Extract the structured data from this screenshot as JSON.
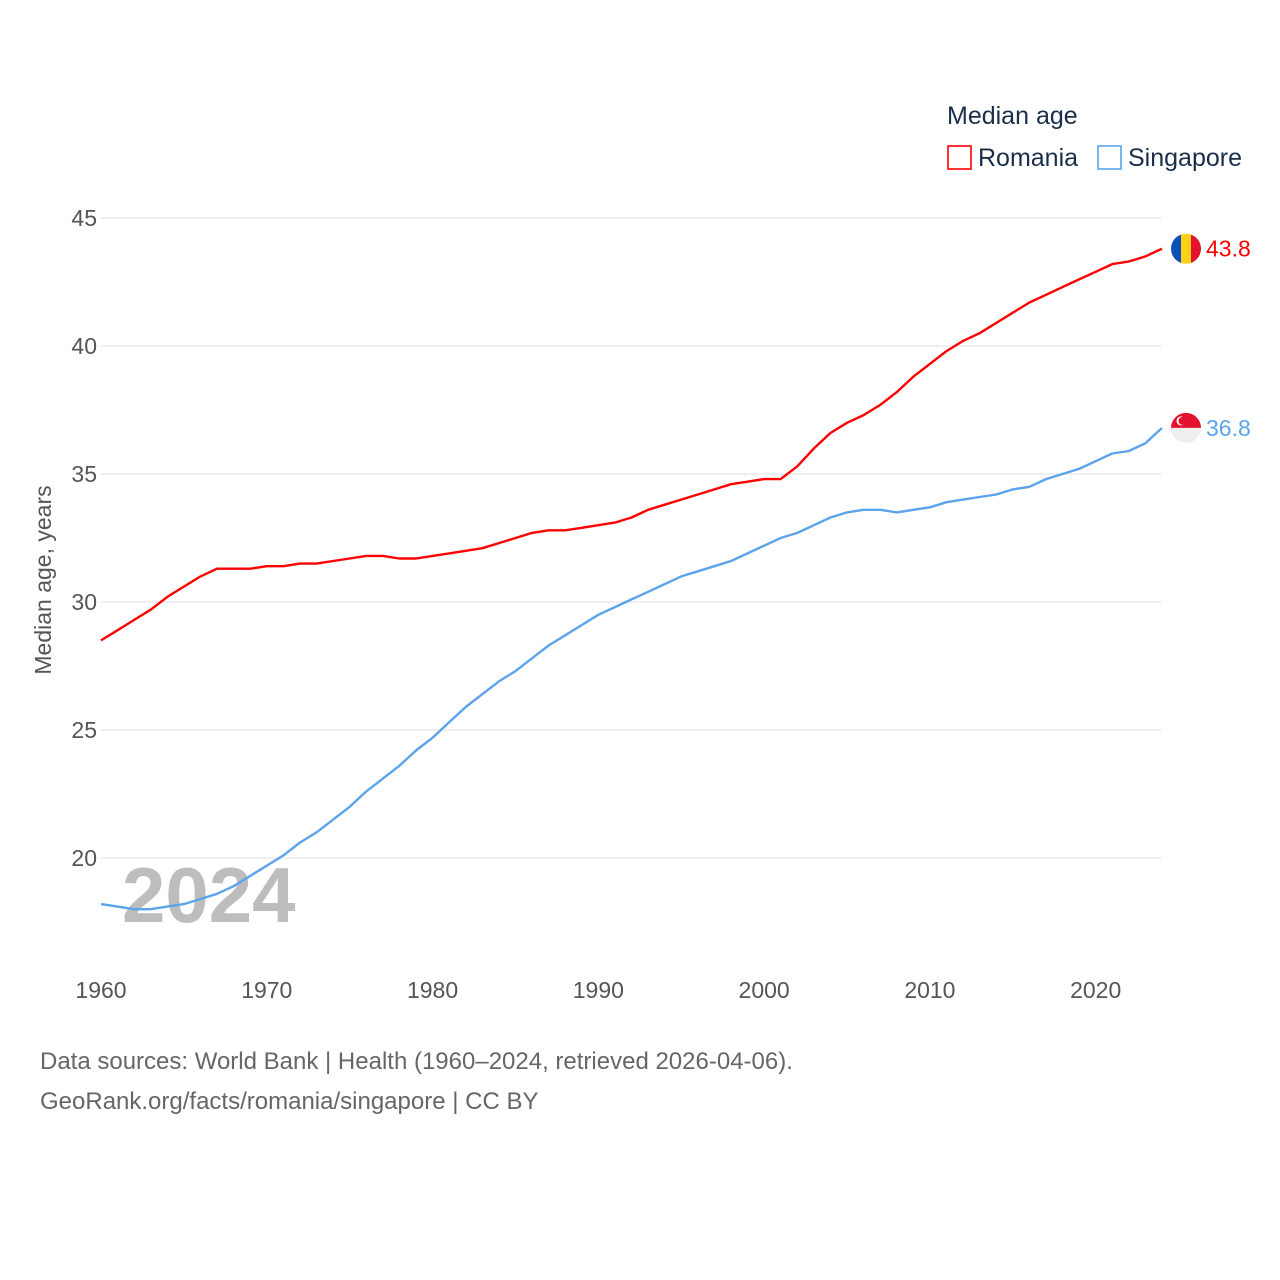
{
  "chart_data": {
    "type": "line",
    "title": "Median age",
    "ylabel": "Median age, years",
    "xlabel": "",
    "ylim": [
      16,
      45
    ],
    "xlim": [
      1960,
      2024
    ],
    "yticks": [
      20,
      25,
      30,
      35,
      40,
      45
    ],
    "xticks": [
      1960,
      1970,
      1980,
      1990,
      2000,
      2010,
      2020
    ],
    "grid": true,
    "legend_position": "top-right",
    "year_label": "2024",
    "x": [
      1960,
      1961,
      1962,
      1963,
      1964,
      1965,
      1966,
      1967,
      1968,
      1969,
      1970,
      1971,
      1972,
      1973,
      1974,
      1975,
      1976,
      1977,
      1978,
      1979,
      1980,
      1981,
      1982,
      1983,
      1984,
      1985,
      1986,
      1987,
      1988,
      1989,
      1990,
      1991,
      1992,
      1993,
      1994,
      1995,
      1996,
      1997,
      1998,
      1999,
      2000,
      2001,
      2002,
      2003,
      2004,
      2005,
      2006,
      2007,
      2008,
      2009,
      2010,
      2011,
      2012,
      2013,
      2014,
      2015,
      2016,
      2017,
      2018,
      2019,
      2020,
      2021,
      2022,
      2023,
      2024
    ],
    "series": [
      {
        "name": "Romania",
        "color": "#ff0000",
        "end_label": "43.8",
        "flag": "romania-flag",
        "values": [
          28.5,
          28.9,
          29.3,
          29.7,
          30.2,
          30.6,
          31.0,
          31.3,
          31.3,
          31.3,
          31.4,
          31.4,
          31.5,
          31.5,
          31.6,
          31.7,
          31.8,
          31.8,
          31.7,
          31.7,
          31.8,
          31.9,
          32.0,
          32.1,
          32.3,
          32.5,
          32.7,
          32.8,
          32.8,
          32.9,
          33.0,
          33.1,
          33.3,
          33.6,
          33.8,
          34.0,
          34.2,
          34.4,
          34.6,
          34.7,
          34.8,
          34.8,
          35.3,
          36.0,
          36.6,
          37.0,
          37.3,
          37.7,
          38.2,
          38.8,
          39.3,
          39.8,
          40.2,
          40.5,
          40.9,
          41.3,
          41.7,
          42.0,
          42.3,
          42.6,
          42.9,
          43.2,
          43.3,
          43.5,
          43.8
        ]
      },
      {
        "name": "Singapore",
        "color": "#5ba4ec",
        "end_label": "36.8",
        "flag": "singapore-flag",
        "values": [
          18.2,
          18.1,
          18.0,
          18.0,
          18.1,
          18.2,
          18.4,
          18.6,
          18.9,
          19.3,
          19.7,
          20.1,
          20.6,
          21.0,
          21.5,
          22.0,
          22.6,
          23.1,
          23.6,
          24.2,
          24.7,
          25.3,
          25.9,
          26.4,
          26.9,
          27.3,
          27.8,
          28.3,
          28.7,
          29.1,
          29.5,
          29.8,
          30.1,
          30.4,
          30.7,
          31.0,
          31.2,
          31.4,
          31.6,
          31.9,
          32.2,
          32.5,
          32.7,
          33.0,
          33.3,
          33.5,
          33.6,
          33.6,
          33.5,
          33.6,
          33.7,
          33.9,
          34.0,
          34.1,
          34.2,
          34.4,
          34.5,
          34.8,
          35.0,
          35.2,
          35.5,
          35.8,
          35.9,
          36.2,
          36.8
        ]
      }
    ]
  },
  "footer": {
    "line1": "Data sources: World Bank | Health (1960–2024, retrieved 2026-04-06).",
    "line2": "GeoRank.org/facts/romania/singapore | CC BY"
  }
}
